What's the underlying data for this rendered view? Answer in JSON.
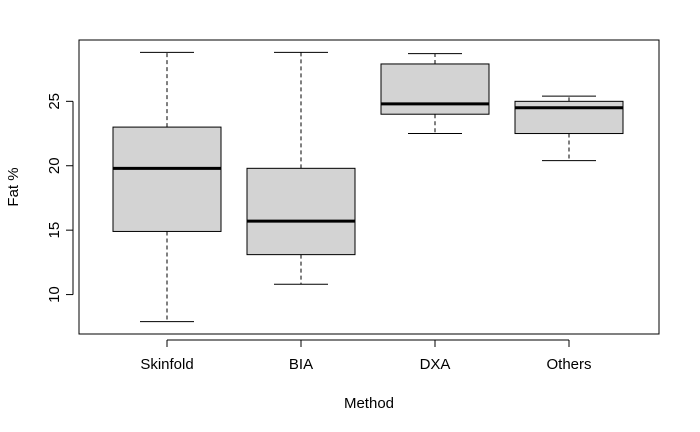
{
  "chart_data": {
    "type": "boxplot",
    "categories": [
      "Skinfold",
      "BIA",
      "DXA",
      "Others"
    ],
    "boxes": [
      {
        "category": "Skinfold",
        "whisker_low": 7.9,
        "q1": 14.9,
        "median": 19.8,
        "q3": 23.0,
        "whisker_high": 28.8
      },
      {
        "category": "BIA",
        "whisker_low": 10.8,
        "q1": 13.1,
        "median": 15.7,
        "q3": 19.8,
        "whisker_high": 28.8
      },
      {
        "category": "DXA",
        "whisker_low": 22.5,
        "q1": 24.0,
        "median": 24.8,
        "q3": 27.9,
        "whisker_high": 28.7
      },
      {
        "category": "Others",
        "whisker_low": 20.4,
        "q1": 22.5,
        "median": 24.5,
        "q3": 25.0,
        "whisker_high": 25.4
      }
    ],
    "xlabel": "Method",
    "ylabel": "Fat %",
    "yticks": [
      10,
      15,
      20,
      25
    ],
    "ylim": [
      6.94,
      29.76
    ],
    "box_fill": "#d3d3d3",
    "grid": false
  }
}
